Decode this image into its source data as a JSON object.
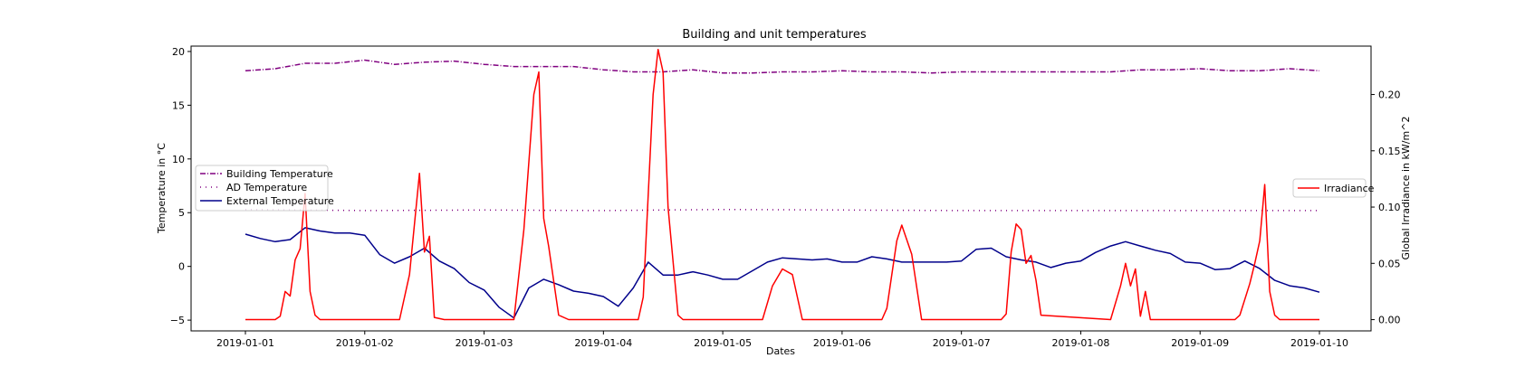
{
  "chart_data": {
    "type": "line",
    "title": "Building and unit temperatures",
    "xlabel": "Dates",
    "ylabel_left": "Temperature in °C",
    "ylabel_right": "Global Irradiance in kW/m^2",
    "x_range": [
      "2019-01-01",
      "2019-01-10"
    ],
    "x_ticks": [
      "2019-01-01",
      "2019-01-02",
      "2019-01-03",
      "2019-01-04",
      "2019-01-05",
      "2019-01-06",
      "2019-01-07",
      "2019-01-08",
      "2019-01-09",
      "2019-01-10"
    ],
    "ylim_left": [
      -6,
      20.5
    ],
    "yticks_left": [
      "−5",
      "0",
      "5",
      "10",
      "15",
      "20"
    ],
    "ylim_right": [
      -0.01,
      0.243
    ],
    "yticks_right": [
      "0.00",
      "0.05",
      "0.10",
      "0.15",
      "0.20"
    ],
    "grid": false,
    "legend_left_placement": "center-left",
    "legend_right_placement": "center-right",
    "series": [
      {
        "name": "Building Temperature",
        "axis": "left",
        "color": "#800080",
        "style": "dashdot",
        "x": [
          "2019-01-01 00:00",
          "2019-01-01 06:00",
          "2019-01-01 12:00",
          "2019-01-01 18:00",
          "2019-01-02 00:00",
          "2019-01-02 06:00",
          "2019-01-02 12:00",
          "2019-01-02 18:00",
          "2019-01-03 00:00",
          "2019-01-03 06:00",
          "2019-01-03 12:00",
          "2019-01-03 18:00",
          "2019-01-04 00:00",
          "2019-01-04 06:00",
          "2019-01-04 12:00",
          "2019-01-04 18:00",
          "2019-01-05 00:00",
          "2019-01-05 06:00",
          "2019-01-05 12:00",
          "2019-01-05 18:00",
          "2019-01-06 00:00",
          "2019-01-06 06:00",
          "2019-01-06 12:00",
          "2019-01-06 18:00",
          "2019-01-07 00:00",
          "2019-01-07 06:00",
          "2019-01-07 12:00",
          "2019-01-07 18:00",
          "2019-01-08 00:00",
          "2019-01-08 06:00",
          "2019-01-08 12:00",
          "2019-01-08 18:00",
          "2019-01-09 00:00",
          "2019-01-09 06:00",
          "2019-01-09 12:00",
          "2019-01-09 18:00",
          "2019-01-10 00:00"
        ],
        "values": [
          18.2,
          18.4,
          18.9,
          18.9,
          19.2,
          18.8,
          19.0,
          19.1,
          18.8,
          18.6,
          18.6,
          18.6,
          18.3,
          18.1,
          18.1,
          18.3,
          18.0,
          18.0,
          18.1,
          18.1,
          18.2,
          18.1,
          18.1,
          18.0,
          18.1,
          18.1,
          18.1,
          18.1,
          18.1,
          18.1,
          18.3,
          18.3,
          18.4,
          18.2,
          18.2,
          18.4,
          18.2
        ]
      },
      {
        "name": "AD Temperature",
        "axis": "left",
        "color": "#800080",
        "style": "dotted",
        "x": [
          "2019-01-01 00:00",
          "2019-01-02 00:00",
          "2019-01-03 00:00",
          "2019-01-04 00:00",
          "2019-01-05 00:00",
          "2019-01-06 00:00",
          "2019-01-07 00:00",
          "2019-01-08 00:00",
          "2019-01-09 00:00",
          "2019-01-10 00:00"
        ],
        "values": [
          5.3,
          5.2,
          5.25,
          5.2,
          5.3,
          5.25,
          5.2,
          5.2,
          5.2,
          5.2
        ]
      },
      {
        "name": "External Temperature",
        "axis": "left",
        "color": "#00008b",
        "style": "solid",
        "x": [
          "2019-01-01 00:00",
          "2019-01-01 03:00",
          "2019-01-01 06:00",
          "2019-01-01 09:00",
          "2019-01-01 12:00",
          "2019-01-01 15:00",
          "2019-01-01 18:00",
          "2019-01-01 21:00",
          "2019-01-02 00:00",
          "2019-01-02 03:00",
          "2019-01-02 06:00",
          "2019-01-02 09:00",
          "2019-01-02 12:00",
          "2019-01-02 15:00",
          "2019-01-02 18:00",
          "2019-01-02 21:00",
          "2019-01-03 00:00",
          "2019-01-03 03:00",
          "2019-01-03 06:00",
          "2019-01-03 09:00",
          "2019-01-03 12:00",
          "2019-01-03 15:00",
          "2019-01-03 18:00",
          "2019-01-03 21:00",
          "2019-01-04 00:00",
          "2019-01-04 03:00",
          "2019-01-04 06:00",
          "2019-01-04 09:00",
          "2019-01-04 12:00",
          "2019-01-04 15:00",
          "2019-01-04 18:00",
          "2019-01-04 21:00",
          "2019-01-05 00:00",
          "2019-01-05 03:00",
          "2019-01-05 06:00",
          "2019-01-05 09:00",
          "2019-01-05 12:00",
          "2019-01-05 15:00",
          "2019-01-05 18:00",
          "2019-01-05 21:00",
          "2019-01-06 00:00",
          "2019-01-06 03:00",
          "2019-01-06 06:00",
          "2019-01-06 09:00",
          "2019-01-06 12:00",
          "2019-01-06 15:00",
          "2019-01-06 18:00",
          "2019-01-06 21:00",
          "2019-01-07 00:00",
          "2019-01-07 03:00",
          "2019-01-07 06:00",
          "2019-01-07 09:00",
          "2019-01-07 12:00",
          "2019-01-07 15:00",
          "2019-01-07 18:00",
          "2019-01-07 21:00",
          "2019-01-08 00:00",
          "2019-01-08 03:00",
          "2019-01-08 06:00",
          "2019-01-08 09:00",
          "2019-01-08 12:00",
          "2019-01-08 15:00",
          "2019-01-08 18:00",
          "2019-01-08 21:00",
          "2019-01-09 00:00",
          "2019-01-09 03:00",
          "2019-01-09 06:00",
          "2019-01-09 09:00",
          "2019-01-09 12:00",
          "2019-01-09 15:00",
          "2019-01-09 18:00",
          "2019-01-09 21:00",
          "2019-01-10 00:00"
        ],
        "values": [
          3.0,
          2.6,
          2.3,
          2.5,
          3.6,
          3.3,
          3.1,
          3.1,
          2.9,
          1.1,
          0.3,
          0.9,
          1.7,
          0.5,
          -0.2,
          -1.5,
          -2.2,
          -3.8,
          -4.8,
          -2.0,
          -1.2,
          -1.7,
          -2.3,
          -2.5,
          -2.8,
          -3.7,
          -2.0,
          0.4,
          -0.8,
          -0.8,
          -0.5,
          -0.8,
          -1.2,
          -1.2,
          -0.4,
          0.4,
          0.8,
          0.7,
          0.6,
          0.7,
          0.4,
          0.4,
          0.9,
          0.7,
          0.4,
          0.4,
          0.4,
          0.4,
          0.5,
          1.6,
          1.7,
          0.9,
          0.6,
          0.4,
          -0.1,
          0.3,
          0.5,
          1.3,
          1.9,
          2.3,
          1.9,
          1.5,
          1.2,
          0.4,
          0.3,
          -0.3,
          -0.2,
          0.5,
          -0.2,
          -1.3,
          -1.8,
          -2.0,
          -2.4
        ]
      },
      {
        "name": "Irradiance",
        "axis": "right",
        "color": "#ff0000",
        "style": "solid",
        "x": [
          "2019-01-01 00:00",
          "2019-01-01 06:00",
          "2019-01-01 07:00",
          "2019-01-01 08:00",
          "2019-01-01 09:00",
          "2019-01-01 10:00",
          "2019-01-01 11:00",
          "2019-01-01 12:00",
          "2019-01-01 13:00",
          "2019-01-01 14:00",
          "2019-01-01 15:00",
          "2019-01-01 16:00",
          "2019-01-02 07:00",
          "2019-01-02 09:00",
          "2019-01-02 11:00",
          "2019-01-02 12:00",
          "2019-01-02 13:00",
          "2019-01-02 14:00",
          "2019-01-02 16:00",
          "2019-01-02 17:00",
          "2019-01-03 06:00",
          "2019-01-03 08:00",
          "2019-01-03 10:00",
          "2019-01-03 11:00",
          "2019-01-03 12:00",
          "2019-01-03 13:00",
          "2019-01-03 15:00",
          "2019-01-03 17:00",
          "2019-01-04 07:00",
          "2019-01-04 08:00",
          "2019-01-04 10:00",
          "2019-01-04 11:00",
          "2019-01-04 12:00",
          "2019-01-04 13:00",
          "2019-01-04 15:00",
          "2019-01-04 16:00",
          "2019-01-05 07:00",
          "2019-01-05 08:00",
          "2019-01-05 10:00",
          "2019-01-05 12:00",
          "2019-01-05 14:00",
          "2019-01-05 16:00",
          "2019-01-06 07:00",
          "2019-01-06 08:00",
          "2019-01-06 09:00",
          "2019-01-06 11:00",
          "2019-01-06 12:00",
          "2019-01-06 14:00",
          "2019-01-06 16:00",
          "2019-01-07 07:00",
          "2019-01-07 08:00",
          "2019-01-07 09:00",
          "2019-01-07 10:00",
          "2019-01-07 11:00",
          "2019-01-07 12:00",
          "2019-01-07 13:00",
          "2019-01-07 14:00",
          "2019-01-07 15:00",
          "2019-01-07 16:00",
          "2019-01-08 06:00",
          "2019-01-08 08:00",
          "2019-01-08 09:00",
          "2019-01-08 10:00",
          "2019-01-08 11:00",
          "2019-01-08 12:00",
          "2019-01-08 13:00",
          "2019-01-08 14:00",
          "2019-01-08 15:00",
          "2019-01-09 06:00",
          "2019-01-09 07:00",
          "2019-01-09 08:00",
          "2019-01-09 10:00",
          "2019-01-09 11:00",
          "2019-01-09 12:00",
          "2019-01-09 13:00",
          "2019-01-09 14:00",
          "2019-01-09 15:00",
          "2019-01-09 16:00",
          "2019-01-10 00:00"
        ],
        "values": [
          0.0,
          0.0,
          0.003,
          0.025,
          0.021,
          0.053,
          0.063,
          0.112,
          0.025,
          0.004,
          0.0,
          0.0,
          0.0,
          0.04,
          0.13,
          0.06,
          0.074,
          0.002,
          0.0,
          0.0,
          0.0,
          0.08,
          0.2,
          0.22,
          0.09,
          0.065,
          0.004,
          0.0,
          0.0,
          0.02,
          0.2,
          0.24,
          0.22,
          0.1,
          0.004,
          0.0,
          0.0,
          0.0,
          0.03,
          0.045,
          0.04,
          0.0,
          0.0,
          0.0,
          0.01,
          0.07,
          0.084,
          0.058,
          0.0,
          0.0,
          0.0,
          0.005,
          0.06,
          0.085,
          0.08,
          0.05,
          0.057,
          0.035,
          0.004,
          0.0,
          0.03,
          0.05,
          0.03,
          0.045,
          0.003,
          0.025,
          0.0,
          0.0,
          0.0,
          0.0,
          0.004,
          0.032,
          0.05,
          0.07,
          0.12,
          0.025,
          0.004,
          0.0,
          0.0
        ]
      }
    ]
  }
}
